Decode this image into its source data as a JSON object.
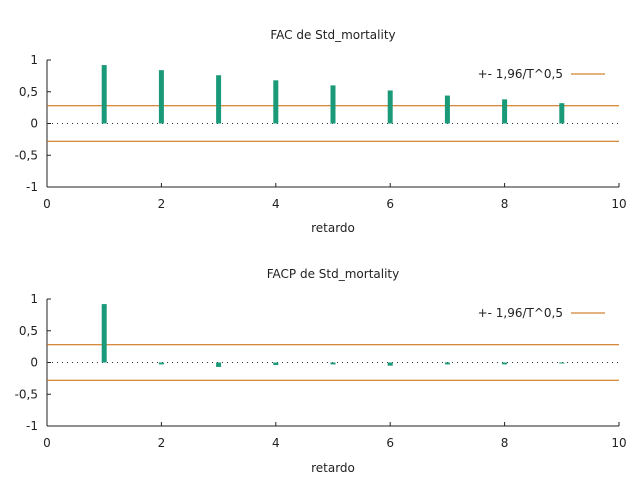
{
  "chart_data": [
    {
      "type": "bar",
      "title": "FAC de Std_mortality",
      "xlabel": "retardo",
      "ylabel": "",
      "xlim": [
        0,
        10
      ],
      "ylim": [
        -1,
        1
      ],
      "x_ticks": [
        "0",
        "2",
        "4",
        "6",
        "8",
        "10"
      ],
      "y_ticks": [
        "1",
        "0,5",
        "0",
        "-0,5",
        "-1"
      ],
      "lags": [
        1,
        2,
        3,
        4,
        5,
        6,
        7,
        8,
        9
      ],
      "values": [
        0.92,
        0.84,
        0.76,
        0.68,
        0.6,
        0.52,
        0.44,
        0.38,
        0.32
      ],
      "band": 0.28,
      "legend": "+- 1,96/T^0,5",
      "legend_position": "top-right",
      "bar_color": "#1a9a78",
      "band_color": "#c86400"
    },
    {
      "type": "bar",
      "title": "FACP de Std_mortality",
      "xlabel": "retardo",
      "ylabel": "",
      "xlim": [
        0,
        10
      ],
      "ylim": [
        -1,
        1
      ],
      "x_ticks": [
        "0",
        "2",
        "4",
        "6",
        "8",
        "10"
      ],
      "y_ticks": [
        "1",
        "0,5",
        "0",
        "-0,5",
        "-1"
      ],
      "lags": [
        1,
        2,
        3,
        4,
        5,
        6,
        7,
        8,
        9
      ],
      "values": [
        0.92,
        -0.03,
        -0.07,
        -0.04,
        -0.03,
        -0.05,
        -0.03,
        -0.03,
        -0.01
      ],
      "band": 0.28,
      "legend": "+- 1,96/T^0,5",
      "legend_position": "top-right",
      "bar_color": "#1a9a78",
      "band_color": "#c86400"
    }
  ]
}
